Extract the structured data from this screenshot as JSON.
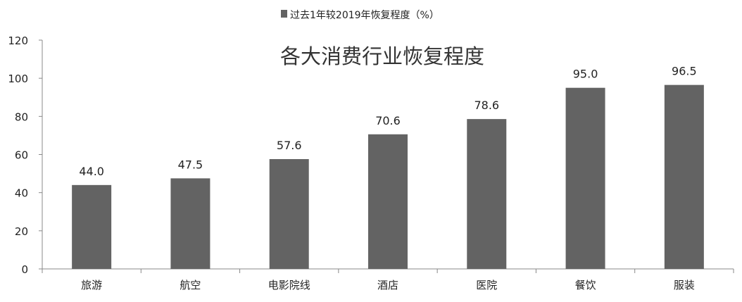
{
  "chart_data": {
    "type": "bar",
    "title": "各大消费行业恢复程度",
    "legend": {
      "position": "top-center",
      "entries": [
        "过去1年较2019年恢复程度（%）"
      ]
    },
    "series": [
      {
        "name": "过去1年较2019年恢复程度（%）",
        "color": "#636363",
        "values": [
          44.0,
          47.5,
          57.6,
          70.6,
          78.6,
          95.0,
          96.5
        ]
      }
    ],
    "categories": [
      "旅游",
      "航空",
      "电影院线",
      "酒店",
      "医院",
      "餐饮",
      "服装"
    ],
    "data_labels": [
      "44.0",
      "47.5",
      "57.6",
      "70.6",
      "78.6",
      "95.0",
      "96.5"
    ],
    "y_axis": {
      "min": 0,
      "max": 120,
      "ticks": [
        "0",
        "20",
        "40",
        "60",
        "80",
        "100",
        "120"
      ],
      "tick_values": [
        0,
        20,
        40,
        60,
        80,
        100,
        120
      ]
    },
    "xlabel": "",
    "ylabel": "",
    "grid": false
  }
}
